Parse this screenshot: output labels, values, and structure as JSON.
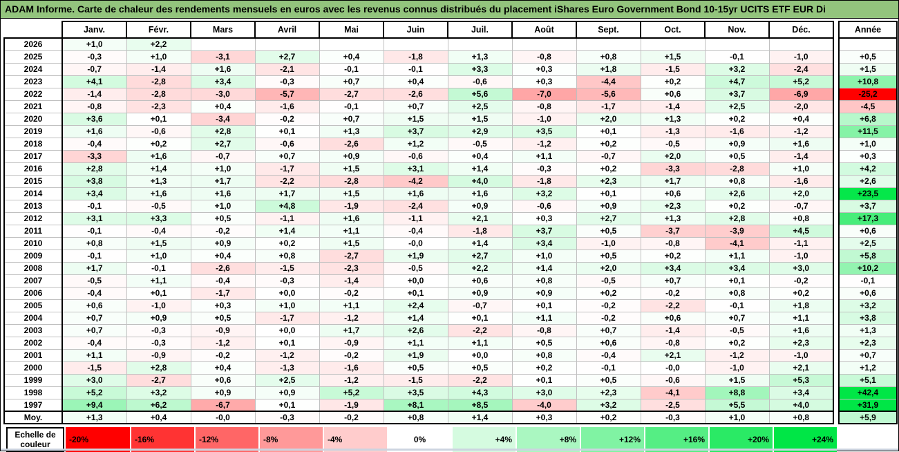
{
  "title": "ADAM Informe. Carte de chaleur des rendements mensuels en euros avec les revenus connus distribués du placement iShares Euro Government Bond 10-15yr UCITS ETF EUR Di",
  "colors": {
    "title_bg": "#93c47d",
    "scale_negative_max": "#ff0000",
    "scale_neutral": "#ffffff",
    "scale_positive_max": "#00e646",
    "grid_line": "#c0c0c0",
    "border": "#000000"
  },
  "chart_data": {
    "type": "heatmap",
    "unit": "% (monthly return, EUR)",
    "columns": [
      "Janv.",
      "Févr.",
      "Mars",
      "Avril",
      "Mai",
      "Juin",
      "Juil.",
      "Août",
      "Sept.",
      "Oct.",
      "Nov.",
      "Déc."
    ],
    "annual_header": "Année",
    "rows": [
      {
        "year": "2026",
        "values": [
          "+1,0",
          "+2,2",
          "",
          "",
          "",
          "",
          "",
          "",
          "",
          "",
          "",
          ""
        ],
        "annual": ""
      },
      {
        "year": "2025",
        "values": [
          "-0,3",
          "+1,0",
          "-3,1",
          "+2,7",
          "+0,4",
          "-1,8",
          "+1,3",
          "-0,8",
          "+0,8",
          "+1,5",
          "-0,1",
          "-1,0"
        ],
        "annual": "+0,5"
      },
      {
        "year": "2024",
        "values": [
          "-0,7",
          "-1,4",
          "+1,6",
          "-2,1",
          "-0,1",
          "-0,1",
          "+3,3",
          "+0,3",
          "+1,8",
          "-1,5",
          "+3,2",
          "-2,4"
        ],
        "annual": "+1,5"
      },
      {
        "year": "2023",
        "values": [
          "+4,1",
          "-2,8",
          "+3,4",
          "-0,3",
          "+0,7",
          "+0,4",
          "-0,6",
          "+0,3",
          "-4,4",
          "+0,2",
          "+4,7",
          "+5,2"
        ],
        "annual": "+10,8"
      },
      {
        "year": "2022",
        "values": [
          "-1,4",
          "-2,8",
          "-3,0",
          "-5,7",
          "-2,7",
          "-2,6",
          "+5,6",
          "-7,0",
          "-5,6",
          "+0,6",
          "+3,7",
          "-6,9"
        ],
        "annual": "-25,2"
      },
      {
        "year": "2021",
        "values": [
          "-0,8",
          "-2,3",
          "+0,4",
          "-1,6",
          "-0,1",
          "+0,7",
          "+2,5",
          "-0,8",
          "-1,7",
          "-1,4",
          "+2,5",
          "-2,0"
        ],
        "annual": "-4,5"
      },
      {
        "year": "2020",
        "values": [
          "+3,6",
          "+0,1",
          "-3,4",
          "-0,2",
          "+0,7",
          "+1,5",
          "+1,5",
          "-1,0",
          "+2,0",
          "+1,3",
          "+0,2",
          "+0,4"
        ],
        "annual": "+6,8"
      },
      {
        "year": "2019",
        "values": [
          "+1,6",
          "-0,6",
          "+2,8",
          "+0,1",
          "+1,3",
          "+3,7",
          "+2,9",
          "+3,5",
          "+0,1",
          "-1,3",
          "-1,6",
          "-1,2"
        ],
        "annual": "+11,5"
      },
      {
        "year": "2018",
        "values": [
          "-0,4",
          "+0,2",
          "+2,7",
          "-0,6",
          "-2,6",
          "+1,2",
          "-0,5",
          "-1,2",
          "+0,2",
          "-0,5",
          "+0,9",
          "+1,6"
        ],
        "annual": "+1,0"
      },
      {
        "year": "2017",
        "values": [
          "-3,3",
          "+1,6",
          "-0,7",
          "+0,7",
          "+0,9",
          "-0,6",
          "+0,4",
          "+1,1",
          "-0,7",
          "+2,0",
          "+0,5",
          "-1,4"
        ],
        "annual": "+0,3"
      },
      {
        "year": "2016",
        "values": [
          "+2,8",
          "+1,4",
          "+1,0",
          "-1,7",
          "+1,5",
          "+3,1",
          "+1,4",
          "-0,3",
          "+0,2",
          "-3,3",
          "-2,8",
          "+1,0"
        ],
        "annual": "+4,2"
      },
      {
        "year": "2015",
        "values": [
          "+3,8",
          "+1,3",
          "+1,7",
          "-2,2",
          "-2,8",
          "-4,2",
          "+4,0",
          "-1,8",
          "+2,3",
          "+1,7",
          "+0,8",
          "-1,6"
        ],
        "annual": "+2,6"
      },
      {
        "year": "2014",
        "values": [
          "+3,4",
          "+1,6",
          "+1,6",
          "+1,7",
          "+1,5",
          "+1,6",
          "+1,6",
          "+3,2",
          "+0,1",
          "+0,6",
          "+2,6",
          "+2,0"
        ],
        "annual": "+23,5"
      },
      {
        "year": "2013",
        "values": [
          "-0,1",
          "-0,5",
          "+1,0",
          "+4,8",
          "-1,9",
          "-2,4",
          "+0,9",
          "-0,6",
          "+0,9",
          "+2,3",
          "+0,2",
          "-0,7"
        ],
        "annual": "+3,7"
      },
      {
        "year": "2012",
        "values": [
          "+3,1",
          "+3,3",
          "+0,5",
          "-1,1",
          "+1,6",
          "-1,1",
          "+2,1",
          "+0,3",
          "+2,7",
          "+1,3",
          "+2,8",
          "+0,8"
        ],
        "annual": "+17,3"
      },
      {
        "year": "2011",
        "values": [
          "-0,1",
          "-0,4",
          "-0,2",
          "+1,4",
          "+1,1",
          "-0,4",
          "-1,8",
          "+3,7",
          "+0,5",
          "-3,7",
          "-3,9",
          "+4,5"
        ],
        "annual": "+0,6"
      },
      {
        "year": "2010",
        "values": [
          "+0,8",
          "+1,5",
          "+0,9",
          "+0,2",
          "+1,5",
          "-0,0",
          "+1,4",
          "+3,4",
          "-1,0",
          "-0,8",
          "-4,1",
          "-1,1"
        ],
        "annual": "+2,5"
      },
      {
        "year": "2009",
        "values": [
          "-0,1",
          "+1,0",
          "+0,4",
          "+0,8",
          "-2,7",
          "+1,9",
          "+2,7",
          "+1,0",
          "+0,5",
          "+0,2",
          "+1,1",
          "-1,0"
        ],
        "annual": "+5,8"
      },
      {
        "year": "2008",
        "values": [
          "+1,7",
          "-0,1",
          "-2,6",
          "-1,5",
          "-2,3",
          "-0,5",
          "+2,2",
          "+1,4",
          "+2,0",
          "+3,4",
          "+3,4",
          "+3,0"
        ],
        "annual": "+10,2"
      },
      {
        "year": "2007",
        "values": [
          "-0,5",
          "+1,1",
          "-0,4",
          "-0,3",
          "-1,4",
          "+0,0",
          "+0,6",
          "+0,8",
          "-0,5",
          "+0,7",
          "+0,1",
          "-0,2"
        ],
        "annual": "-0,1"
      },
      {
        "year": "2006",
        "values": [
          "-0,4",
          "+0,1",
          "-1,7",
          "+0,0",
          "-0,2",
          "+0,1",
          "+0,9",
          "+0,9",
          "+0,2",
          "-0,2",
          "+0,8",
          "+0,2"
        ],
        "annual": "+0,6"
      },
      {
        "year": "2005",
        "values": [
          "+0,6",
          "-1,0",
          "+0,3",
          "+1,0",
          "+1,1",
          "+2,4",
          "-0,7",
          "+0,1",
          "-0,2",
          "-2,2",
          "-0,1",
          "+1,8"
        ],
        "annual": "+3,2"
      },
      {
        "year": "2004",
        "values": [
          "+0,7",
          "+0,9",
          "+0,5",
          "-1,7",
          "-1,2",
          "+1,4",
          "+0,1",
          "+1,1",
          "-0,2",
          "+0,6",
          "+0,7",
          "+1,1"
        ],
        "annual": "+3,8"
      },
      {
        "year": "2003",
        "values": [
          "+0,7",
          "-0,3",
          "-0,9",
          "+0,0",
          "+1,7",
          "+2,6",
          "-2,2",
          "-0,8",
          "+0,7",
          "-1,4",
          "-0,5",
          "+1,6"
        ],
        "annual": "+1,3"
      },
      {
        "year": "2002",
        "values": [
          "-0,4",
          "-0,3",
          "-1,2",
          "+0,1",
          "-0,9",
          "+1,1",
          "+1,1",
          "+0,5",
          "+0,6",
          "-0,8",
          "+0,2",
          "+2,3"
        ],
        "annual": "+2,3"
      },
      {
        "year": "2001",
        "values": [
          "+1,1",
          "-0,9",
          "-0,2",
          "-1,2",
          "-0,2",
          "+1,9",
          "+0,0",
          "+0,8",
          "-0,4",
          "+2,1",
          "-1,2",
          "-1,0"
        ],
        "annual": "+0,7"
      },
      {
        "year": "2000",
        "values": [
          "-1,5",
          "+2,8",
          "+0,4",
          "-1,3",
          "-1,6",
          "+0,5",
          "+0,5",
          "+0,2",
          "-0,1",
          "-0,0",
          "-1,0",
          "+2,1"
        ],
        "annual": "+1,2"
      },
      {
        "year": "1999",
        "values": [
          "+3,0",
          "-2,7",
          "+0,6",
          "+2,5",
          "-1,2",
          "-1,5",
          "-2,2",
          "+0,1",
          "+0,5",
          "-0,6",
          "+1,5",
          "+5,3"
        ],
        "annual": "+5,1"
      },
      {
        "year": "1998",
        "values": [
          "+5,2",
          "+3,2",
          "+0,9",
          "+0,9",
          "+5,2",
          "+3,5",
          "+4,3",
          "+3,0",
          "+2,3",
          "-4,1",
          "+8,8",
          "+3,4"
        ],
        "annual": "+42,4"
      },
      {
        "year": "1997",
        "values": [
          "+9,4",
          "+6,2",
          "-6,7",
          "+0,1",
          "-1,9",
          "+8,1",
          "+8,5",
          "-4,0",
          "+3,2",
          "-2,5",
          "+5,5",
          "+4,0"
        ],
        "annual": "+31,9"
      }
    ],
    "average_row": {
      "label": "Moy.",
      "values": [
        "+1,3",
        "+0,4",
        "-0,0",
        "-0,3",
        "-0,2",
        "+0,8",
        "+1,4",
        "+0,3",
        "+0,2",
        "-0,3",
        "+1,0",
        "+0,8"
      ],
      "annual": "+5,9"
    },
    "color_scale": {
      "label": "Echelle de couleur",
      "stops": [
        "-20%",
        "-16%",
        "-12%",
        "-8%",
        "-4%",
        "0%",
        "+4%",
        "+8%",
        "+12%",
        "+16%",
        "+20%",
        "+24%"
      ],
      "min": -20,
      "mid": 0,
      "max": 24
    }
  }
}
